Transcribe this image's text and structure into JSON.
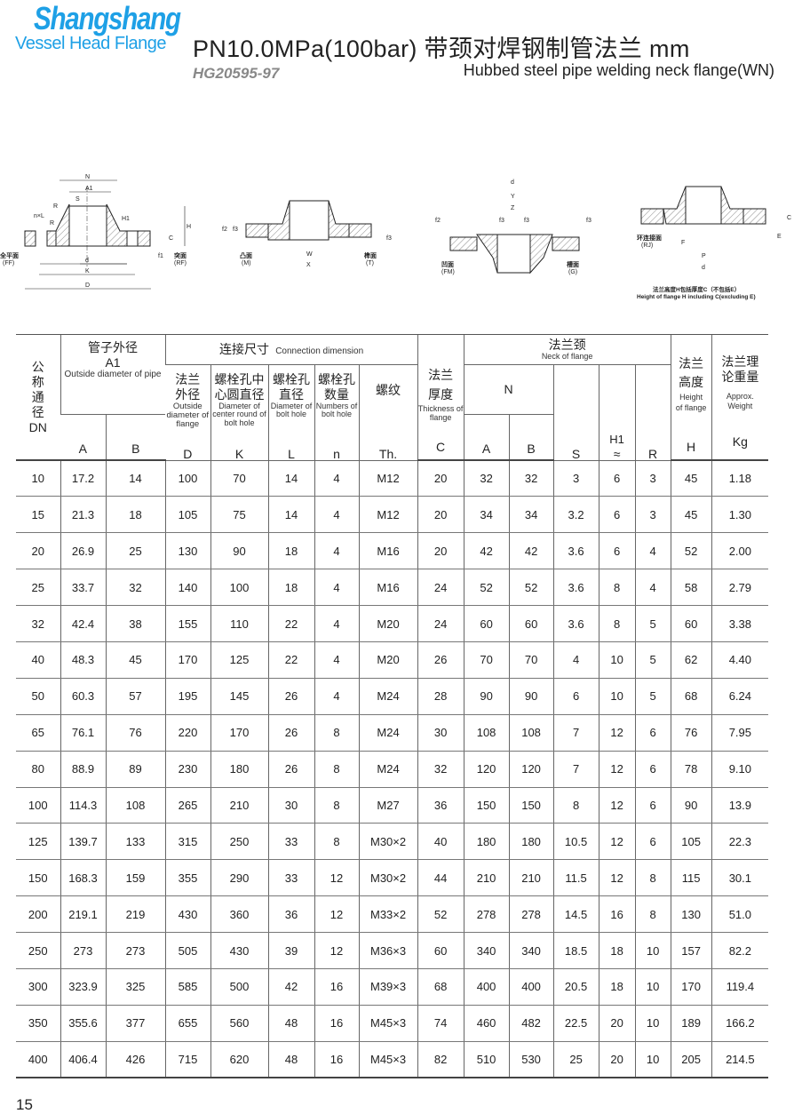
{
  "header": {
    "brand": "Shangshang",
    "brand_sub": "Vessel Head Flange",
    "title": "PN10.0MPa(100bar) 带颈对焊钢制管法兰  mm",
    "standard": "HG20595-97",
    "subtitle": "Hubbed steel pipe welding neck flange(WN)",
    "brand_color": "#1ea0e6"
  },
  "diagrams": {
    "d1": {
      "labels": [
        "N",
        "A1",
        "S",
        "R",
        "n×L",
        "R",
        "H1",
        "H",
        "C",
        "f1",
        "d",
        "K",
        "D"
      ],
      "left": "全平面",
      "left_en": "(FF)",
      "right": "突面",
      "right_en": "(RF)"
    },
    "d2": {
      "labels": [
        "f2",
        "f3",
        "f3",
        "W",
        "X"
      ],
      "left": "凸面",
      "left_en": "(M)",
      "right": "榫面",
      "right_en": "(T)"
    },
    "d3": {
      "labels": [
        "d",
        "Y",
        "Z",
        "f2",
        "f3",
        "f3",
        "f3"
      ],
      "left": "凹面",
      "left_en": "(FM)",
      "right": "槽面",
      "right_en": "(G)"
    },
    "d4": {
      "labels": [
        "C",
        "E",
        "F",
        "P",
        "d"
      ],
      "left": "环连接面",
      "left_en": "(RJ)",
      "note_cn": "法兰高度H包括厚度C（不包括E）",
      "note_en": "Height of flange H including C(excluding E)"
    }
  },
  "table": {
    "dn": {
      "cn": "公称通径",
      "en": "DN"
    },
    "pipe": {
      "cn": "管子外径",
      "sym": "A1",
      "en": "Outside diameter of pipe",
      "a": "A",
      "b": "B"
    },
    "conn": {
      "cn": "连接尺寸",
      "en": "Connection dimension"
    },
    "D": {
      "cn": "法兰外径",
      "en": "Outside diameter of flange",
      "sym": "D"
    },
    "K": {
      "cn": "螺栓孔中心圆直径",
      "en": "Diameter of center round of bolt hole",
      "sym": "K"
    },
    "L": {
      "cn": "螺栓孔直径",
      "en": "Diameter of bolt hole",
      "sym": "L"
    },
    "n": {
      "cn": "螺栓孔数量",
      "en": "Numbers of bolt hole",
      "sym": "n"
    },
    "Th": {
      "cn": "螺纹",
      "sym": "Th."
    },
    "C": {
      "cn": "法兰厚度",
      "en": "Thickness of flange",
      "sym": "C"
    },
    "neck": {
      "cn": "法兰颈",
      "en": "Neck of flange",
      "N": "N",
      "a": "A",
      "b": "B",
      "S": "S",
      "H1": "H1",
      "H1b": "≈",
      "R": "R"
    },
    "H": {
      "cn": "法兰高度",
      "en": "Height of flange",
      "sym": "H"
    },
    "W": {
      "cn": "法兰理论重量",
      "en": "Approx. Weight",
      "sym": "Kg"
    },
    "rows": [
      [
        "10",
        "17.2",
        "14",
        "100",
        "70",
        "14",
        "4",
        "M12",
        "20",
        "32",
        "32",
        "3",
        "6",
        "3",
        "45",
        "1.18"
      ],
      [
        "15",
        "21.3",
        "18",
        "105",
        "75",
        "14",
        "4",
        "M12",
        "20",
        "34",
        "34",
        "3.2",
        "6",
        "3",
        "45",
        "1.30"
      ],
      [
        "20",
        "26.9",
        "25",
        "130",
        "90",
        "18",
        "4",
        "M16",
        "20",
        "42",
        "42",
        "3.6",
        "6",
        "4",
        "52",
        "2.00"
      ],
      [
        "25",
        "33.7",
        "32",
        "140",
        "100",
        "18",
        "4",
        "M16",
        "24",
        "52",
        "52",
        "3.6",
        "8",
        "4",
        "58",
        "2.79"
      ],
      [
        "32",
        "42.4",
        "38",
        "155",
        "110",
        "22",
        "4",
        "M20",
        "24",
        "60",
        "60",
        "3.6",
        "8",
        "5",
        "60",
        "3.38"
      ],
      [
        "40",
        "48.3",
        "45",
        "170",
        "125",
        "22",
        "4",
        "M20",
        "26",
        "70",
        "70",
        "4",
        "10",
        "5",
        "62",
        "4.40"
      ],
      [
        "50",
        "60.3",
        "57",
        "195",
        "145",
        "26",
        "4",
        "M24",
        "28",
        "90",
        "90",
        "6",
        "10",
        "5",
        "68",
        "6.24"
      ],
      [
        "65",
        "76.1",
        "76",
        "220",
        "170",
        "26",
        "8",
        "M24",
        "30",
        "108",
        "108",
        "7",
        "12",
        "6",
        "76",
        "7.95"
      ],
      [
        "80",
        "88.9",
        "89",
        "230",
        "180",
        "26",
        "8",
        "M24",
        "32",
        "120",
        "120",
        "7",
        "12",
        "6",
        "78",
        "9.10"
      ],
      [
        "100",
        "114.3",
        "108",
        "265",
        "210",
        "30",
        "8",
        "M27",
        "36",
        "150",
        "150",
        "8",
        "12",
        "6",
        "90",
        "13.9"
      ],
      [
        "125",
        "139.7",
        "133",
        "315",
        "250",
        "33",
        "8",
        "M30×2",
        "40",
        "180",
        "180",
        "10.5",
        "12",
        "6",
        "105",
        "22.3"
      ],
      [
        "150",
        "168.3",
        "159",
        "355",
        "290",
        "33",
        "12",
        "M30×2",
        "44",
        "210",
        "210",
        "11.5",
        "12",
        "8",
        "115",
        "30.1"
      ],
      [
        "200",
        "219.1",
        "219",
        "430",
        "360",
        "36",
        "12",
        "M33×2",
        "52",
        "278",
        "278",
        "14.5",
        "16",
        "8",
        "130",
        "51.0"
      ],
      [
        "250",
        "273",
        "273",
        "505",
        "430",
        "39",
        "12",
        "M36×3",
        "60",
        "340",
        "340",
        "18.5",
        "18",
        "10",
        "157",
        "82.2"
      ],
      [
        "300",
        "323.9",
        "325",
        "585",
        "500",
        "42",
        "16",
        "M39×3",
        "68",
        "400",
        "400",
        "20.5",
        "18",
        "10",
        "170",
        "119.4"
      ],
      [
        "350",
        "355.6",
        "377",
        "655",
        "560",
        "48",
        "16",
        "M45×3",
        "74",
        "460",
        "482",
        "22.5",
        "20",
        "10",
        "189",
        "166.2"
      ],
      [
        "400",
        "406.4",
        "426",
        "715",
        "620",
        "48",
        "16",
        "M45×3",
        "82",
        "510",
        "530",
        "25",
        "20",
        "10",
        "205",
        "214.5"
      ]
    ]
  },
  "page_number": "15"
}
